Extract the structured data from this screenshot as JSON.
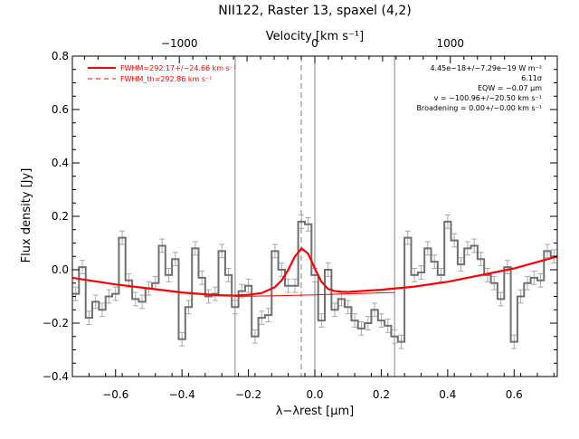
{
  "chart_data": {
    "type": "line",
    "title": "NII122, Raster 13, spaxel (4,2)",
    "xlabel": "λ−λrest [μm]",
    "ylabel": "Flux density [Jy]",
    "top_axis_label": "Velocity [km s⁻¹]",
    "xlim": [
      -0.73,
      0.73
    ],
    "ylim": [
      -0.4,
      0.8
    ],
    "x_ticks": [
      -0.6,
      -0.4,
      -0.2,
      0.0,
      0.2,
      0.4,
      0.6
    ],
    "x_tick_labels": [
      "−0.6",
      "−0.4",
      "−0.2",
      "0.0",
      "0.2",
      "0.4",
      "0.6"
    ],
    "y_ticks": [
      -0.4,
      -0.2,
      0.0,
      0.2,
      0.4,
      0.6,
      0.8
    ],
    "y_tick_labels": [
      "−0.4",
      "−0.2",
      "0.0",
      "0.2",
      "0.4",
      "0.6",
      "0.8"
    ],
    "top_ticks_velocity": [
      -1000,
      0,
      1000
    ],
    "top_tick_labels": [
      "−1000",
      "0",
      "1000"
    ],
    "um_per_km_s": 0.000408,
    "colors": {
      "data": "#707070",
      "error": "#a8a8a8",
      "fit": "#ff0000",
      "vline": "#808080",
      "axis": "#000000"
    },
    "legend": {
      "placement": "top-left",
      "entries": [
        {
          "label": "FWHM=292.17+/−24.66 km s⁻¹",
          "style": "solid"
        },
        {
          "label": "FWHM_th=292.86 km s⁻¹",
          "style": "dashed"
        }
      ]
    },
    "stats": [
      "4.45e−18+/−7.29e−19 W m⁻²",
      "6.11σ",
      "EQW = −0.07 μm",
      "v = −100.96+/−20.50 km s⁻¹",
      "Broadening = 0.00+/−0.00 km s⁻¹"
    ],
    "vertical_lines": [
      {
        "x": -0.24,
        "style": "solid"
      },
      {
        "x": -0.041,
        "style": "dashed"
      },
      {
        "x": 0.0,
        "style": "solid"
      },
      {
        "x": 0.24,
        "style": "solid"
      }
    ],
    "series": [
      {
        "type": "step",
        "x": [
          -0.72,
          -0.7,
          -0.68,
          -0.66,
          -0.64,
          -0.62,
          -0.6,
          -0.58,
          -0.56,
          -0.54,
          -0.52,
          -0.5,
          -0.48,
          -0.46,
          -0.44,
          -0.42,
          -0.4,
          -0.38,
          -0.36,
          -0.34,
          -0.32,
          -0.3,
          -0.28,
          -0.26,
          -0.24,
          -0.22,
          -0.2,
          -0.18,
          -0.16,
          -0.14,
          -0.12,
          -0.1,
          -0.08,
          -0.06,
          -0.04,
          -0.02,
          0.0,
          0.02,
          0.04,
          0.06,
          0.08,
          0.1,
          0.12,
          0.14,
          0.16,
          0.18,
          0.2,
          0.22,
          0.24,
          0.26,
          0.28,
          0.3,
          0.32,
          0.34,
          0.36,
          0.38,
          0.4,
          0.42,
          0.44,
          0.46,
          0.48,
          0.5,
          0.52,
          0.54,
          0.56,
          0.58,
          0.6,
          0.62,
          0.64,
          0.66,
          0.68,
          0.7,
          0.72
        ],
        "y": [
          -0.09,
          0.01,
          -0.18,
          -0.12,
          -0.15,
          -0.1,
          -0.09,
          0.12,
          -0.04,
          -0.11,
          -0.12,
          -0.07,
          -0.05,
          0.09,
          -0.02,
          0.04,
          -0.26,
          -0.14,
          0.08,
          -0.03,
          -0.1,
          -0.09,
          0.07,
          -0.02,
          -0.14,
          -0.08,
          -0.06,
          -0.25,
          -0.18,
          -0.17,
          0.07,
          0.0,
          -0.06,
          -0.06,
          0.18,
          0.17,
          -0.02,
          -0.19,
          0.0,
          -0.15,
          -0.11,
          -0.14,
          -0.19,
          -0.22,
          -0.2,
          -0.15,
          -0.19,
          -0.21,
          -0.25,
          -0.27,
          0.12,
          -0.02,
          -0.01,
          0.08,
          0.03,
          -0.02,
          0.18,
          0.11,
          0.02,
          0.08,
          0.09,
          0.04,
          -0.02,
          -0.05,
          -0.11,
          0.01,
          -0.27,
          -0.1,
          -0.05,
          -0.03,
          -0.04,
          0.07,
          0.05
        ],
        "err": 0.025
      },
      {
        "name": "FWHM=292.17+/−24.66 km s⁻¹",
        "type": "line",
        "x": [
          -0.73,
          -0.6,
          -0.5,
          -0.4,
          -0.3,
          -0.24,
          -0.2,
          -0.16,
          -0.12,
          -0.1,
          -0.08,
          -0.06,
          -0.04,
          -0.02,
          0.0,
          0.02,
          0.04,
          0.06,
          0.08,
          0.1,
          0.2,
          0.3,
          0.4,
          0.5,
          0.6,
          0.73
        ],
        "y": [
          -0.03,
          -0.055,
          -0.07,
          -0.085,
          -0.095,
          -0.097,
          -0.094,
          -0.087,
          -0.065,
          -0.04,
          0.0,
          0.05,
          0.08,
          0.06,
          0.005,
          -0.045,
          -0.072,
          -0.08,
          -0.082,
          -0.083,
          -0.075,
          -0.063,
          -0.045,
          -0.02,
          0.005,
          0.05
        ]
      },
      {
        "name": "FWHM_th=292.86 km s⁻¹",
        "type": "line",
        "x": [
          -0.24,
          -0.1,
          0.0,
          0.1,
          0.24
        ],
        "y": [
          -0.1,
          -0.097,
          -0.094,
          -0.09,
          -0.085
        ]
      }
    ]
  }
}
